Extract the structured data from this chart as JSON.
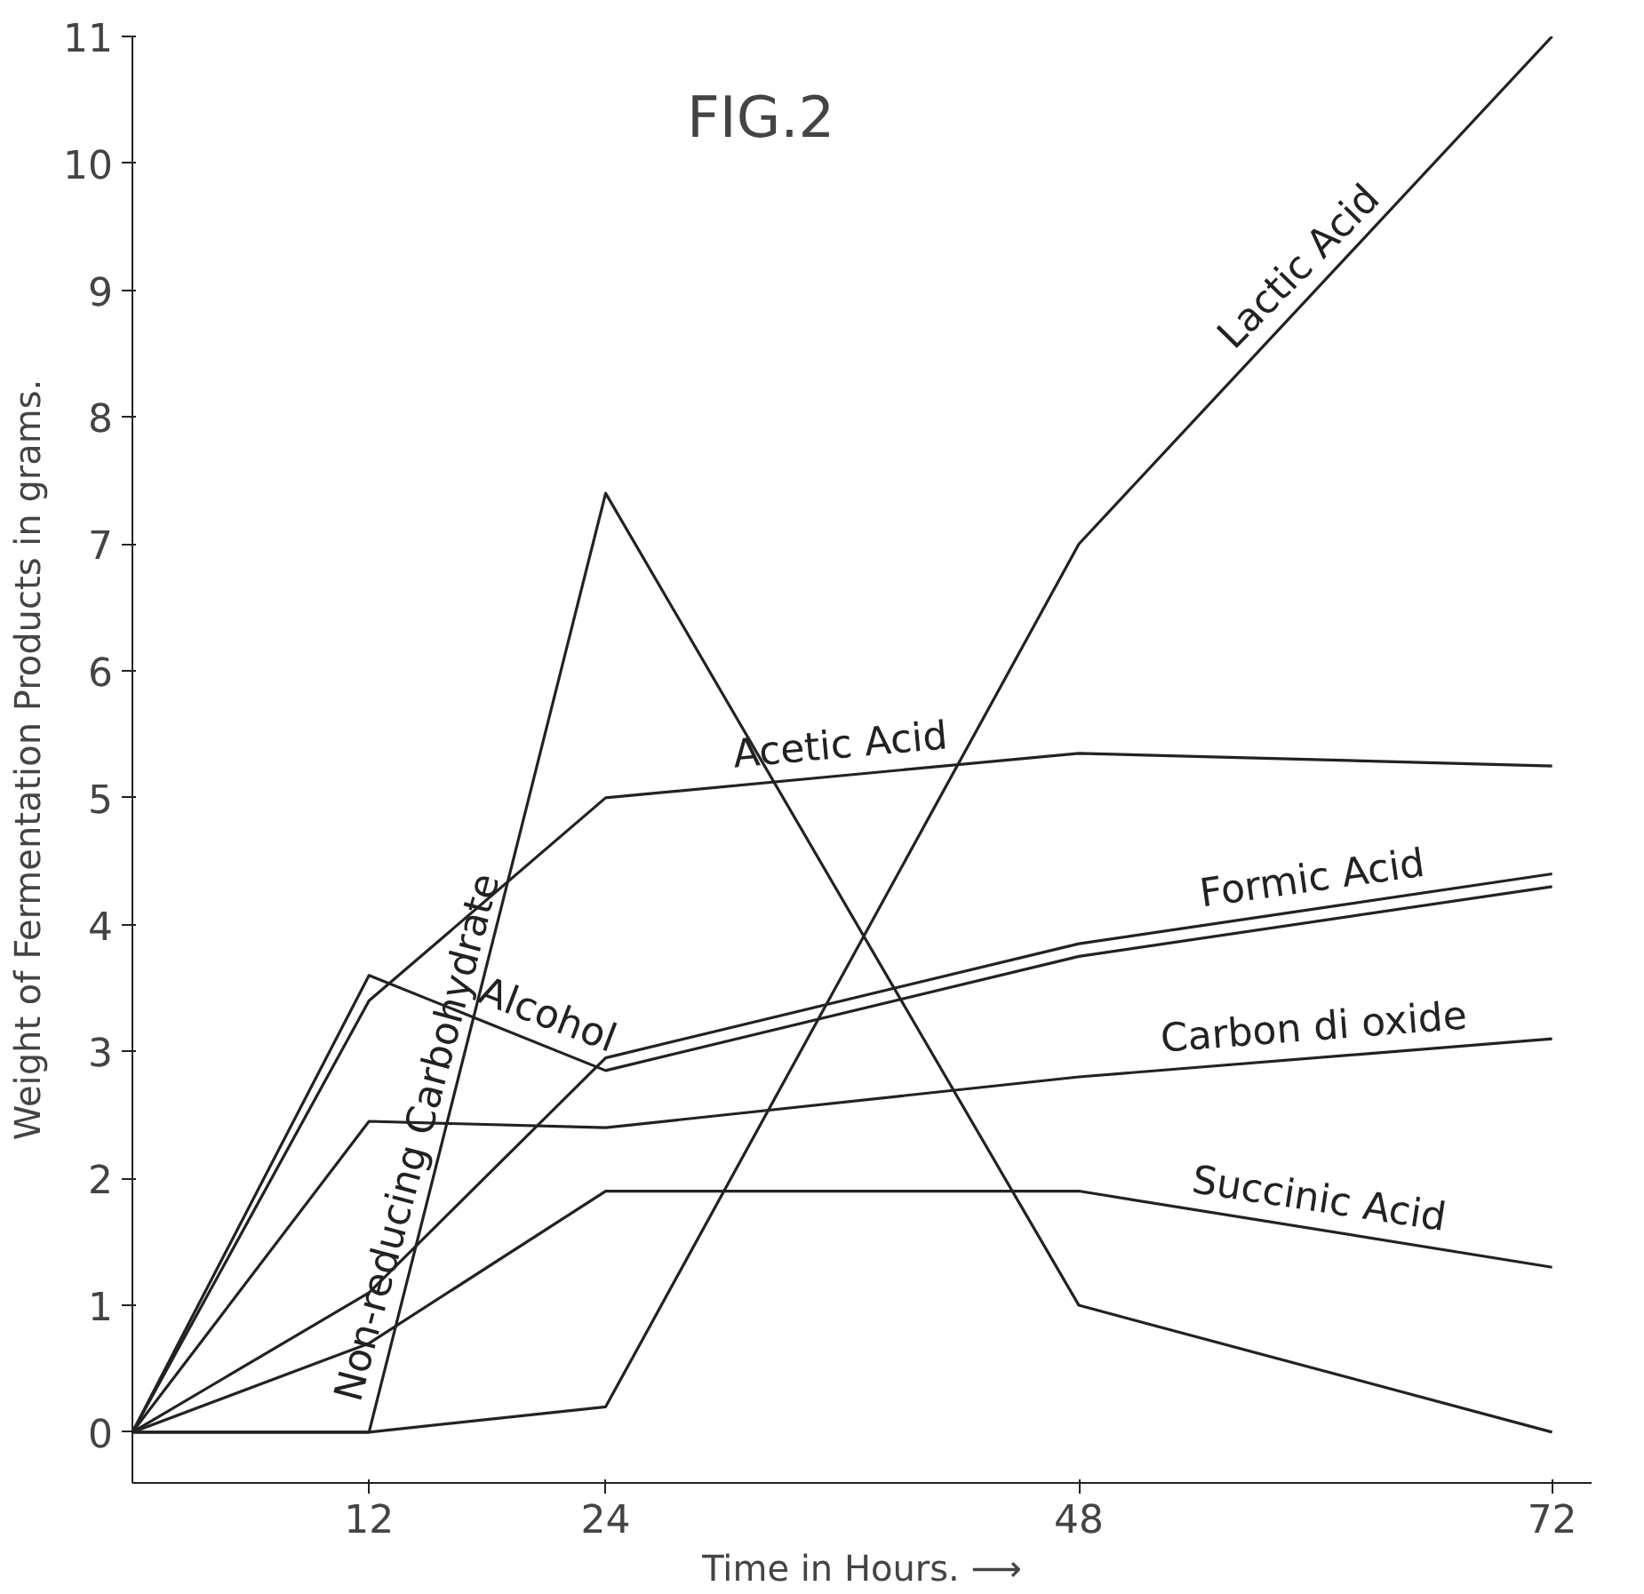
{
  "chart_data": {
    "type": "line",
    "title": "FIG.2",
    "xlabel": "Time in Hours. ⟶",
    "ylabel": "Weight of Fermentation Products in grams.",
    "x": [
      0,
      12,
      24,
      48,
      72
    ],
    "xlim": [
      0,
      74
    ],
    "xticks": [
      12,
      24,
      48,
      72
    ],
    "ylim": [
      -0.4,
      11
    ],
    "yticks": [
      0,
      1,
      2,
      3,
      4,
      5,
      6,
      7,
      8,
      9,
      10,
      11
    ],
    "grid": false,
    "marker": "none",
    "line_style": "solid",
    "series": [
      {
        "name": "Lactic Acid",
        "color": "#222222",
        "values": [
          0,
          0,
          0.2,
          7.0,
          11
        ]
      },
      {
        "name": "Non-reducing Carbohydrate",
        "color": "#222222",
        "values": [
          0,
          0,
          7.4,
          1.0,
          0
        ]
      },
      {
        "name": "Acetic Acid",
        "color": "#222222",
        "values": [
          0,
          3.4,
          5.0,
          5.35,
          5.25
        ]
      },
      {
        "name": "Alcohol",
        "color": "#222222",
        "values": [
          0,
          3.6,
          2.85,
          3.75,
          4.3
        ]
      },
      {
        "name": "Formic Acid",
        "color": "#222222",
        "values": [
          0,
          1.1,
          2.95,
          3.85,
          4.4
        ]
      },
      {
        "name": "Carbon di oxide",
        "color": "#222222",
        "values": [
          0,
          2.45,
          2.4,
          2.8,
          3.1
        ]
      },
      {
        "name": "Succinic Acid",
        "color": "#222222",
        "values": [
          0,
          0.7,
          1.9,
          1.9,
          1.3
        ]
      }
    ]
  }
}
